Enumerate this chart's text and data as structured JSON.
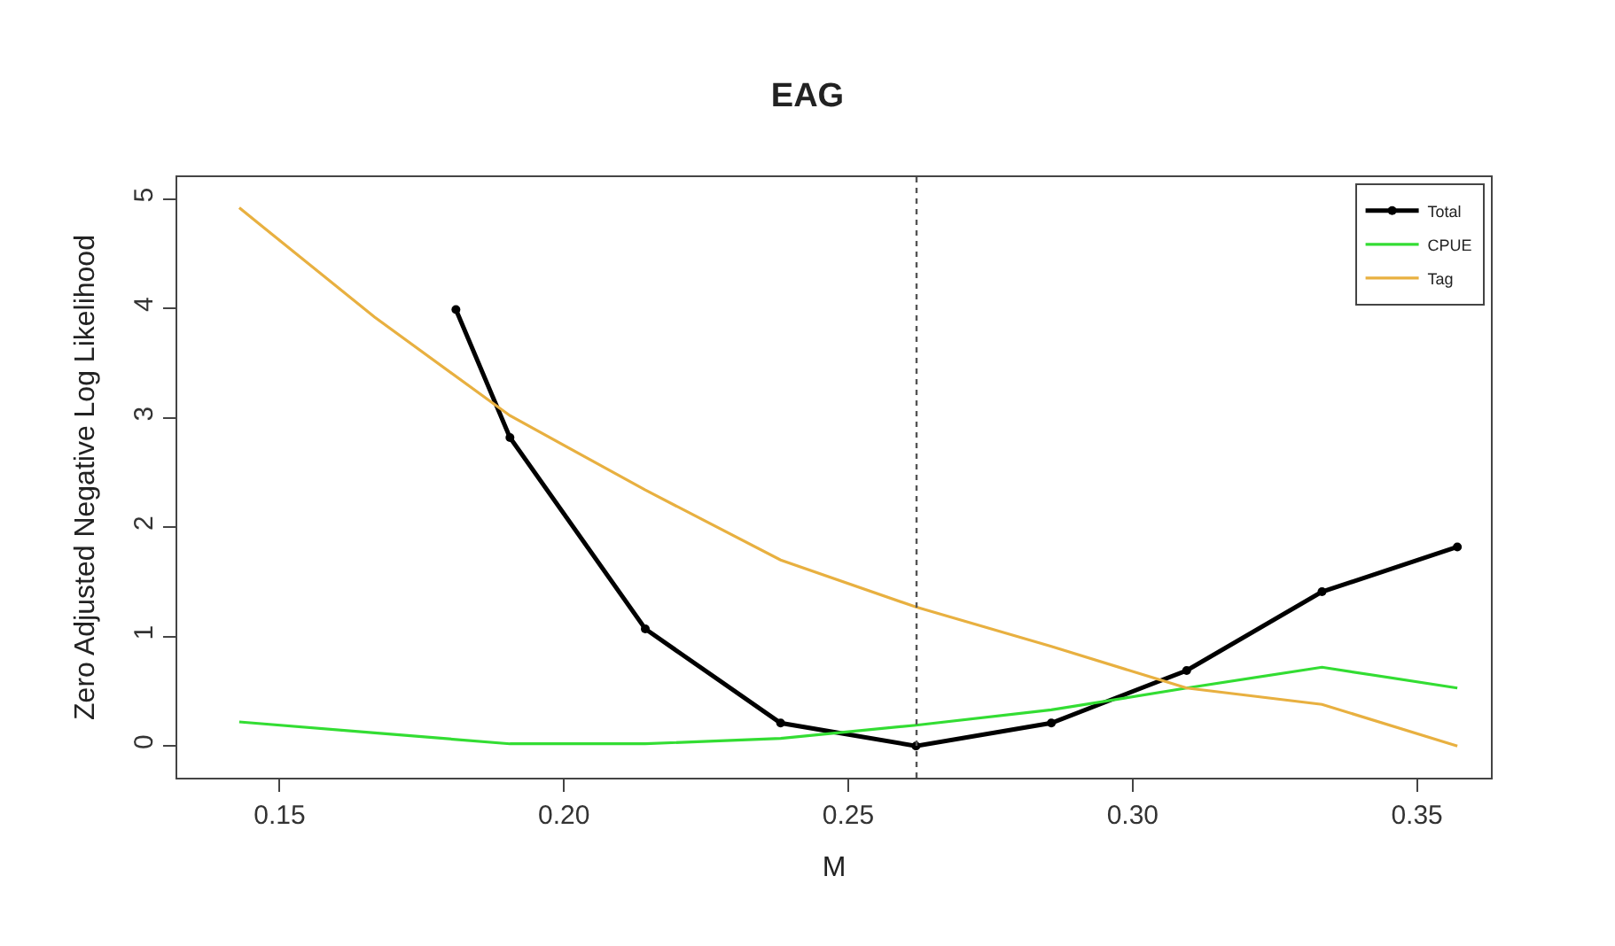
{
  "chart_data": {
    "type": "line",
    "title": "EAG",
    "xlabel": "M",
    "ylabel": "Zero Adjusted Negative Log Likelihood",
    "xlim": [
      0.132,
      0.363
    ],
    "ylim": [
      -0.29,
      5.2
    ],
    "xticks": [
      {
        "value": 0.15,
        "label": "0.15"
      },
      {
        "value": 0.2,
        "label": "0.20"
      },
      {
        "value": 0.25,
        "label": "0.25"
      },
      {
        "value": 0.3,
        "label": "0.30"
      },
      {
        "value": 0.35,
        "label": "0.35"
      }
    ],
    "yticks": [
      0,
      1,
      2,
      3,
      4,
      5
    ],
    "legend": "top right",
    "line_style": "solid",
    "ref_lines": [
      {
        "axis": "x",
        "value": 0.262,
        "label": null,
        "color": "#555555",
        "line_style": "dotted"
      }
    ],
    "series": [
      {
        "name": "Total",
        "color": "#000000",
        "marker": "circle",
        "x": [
          0.181,
          0.1905,
          0.2143,
          0.2381,
          0.2619,
          0.2857,
          0.3095,
          0.3333,
          0.3571
        ],
        "values": [
          3.99,
          2.82,
          1.07,
          0.21,
          0.0,
          0.21,
          0.69,
          1.41,
          1.82
        ]
      },
      {
        "name": "CPUE",
        "color": "#33dd33",
        "marker": "none",
        "x": [
          0.1429,
          0.1667,
          0.1905,
          0.2143,
          0.2381,
          0.2619,
          0.2857,
          0.3095,
          0.3333,
          0.3571
        ],
        "values": [
          0.22,
          0.12,
          0.02,
          0.02,
          0.07,
          0.19,
          0.33,
          0.53,
          0.72,
          0.53
        ]
      },
      {
        "name": "Tag",
        "color": "#e8b040",
        "marker": "none",
        "x": [
          0.1429,
          0.1667,
          0.1905,
          0.2143,
          0.2381,
          0.2619,
          0.2857,
          0.3095,
          0.3333,
          0.3571
        ],
        "values": [
          4.92,
          3.92,
          3.02,
          2.34,
          1.7,
          1.27,
          0.91,
          0.53,
          0.38,
          0.0
        ]
      }
    ]
  }
}
